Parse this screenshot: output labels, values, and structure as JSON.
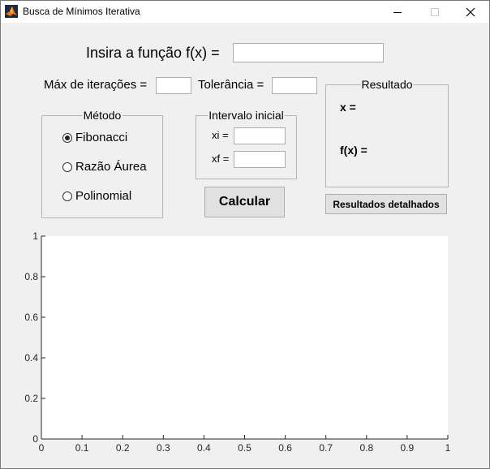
{
  "window": {
    "title": "Busca de Mínimos Iterativa"
  },
  "function_input": {
    "label": "Insira a função f(x) =",
    "value": ""
  },
  "max_iterations": {
    "label": "Máx de iterações =",
    "value": ""
  },
  "tolerance": {
    "label": "Tolerância =",
    "value": ""
  },
  "method_group": {
    "title": "Método",
    "options": [
      {
        "label": "Fibonacci",
        "selected": true
      },
      {
        "label": "Razão Áurea",
        "selected": false
      },
      {
        "label": "Polinomial",
        "selected": false
      }
    ]
  },
  "interval_group": {
    "title": "Intervalo inicial",
    "xi_label": "xi =",
    "xi_value": "",
    "xf_label": "xf =",
    "xf_value": ""
  },
  "result_group": {
    "title": "Resultado",
    "x_label": "x =",
    "fx_label": "f(x) ="
  },
  "buttons": {
    "calculate": "Calcular",
    "detailed_results": "Resultados detalhados"
  },
  "plot": {
    "x_ticks": [
      "0",
      "0.1",
      "0.2",
      "0.3",
      "0.4",
      "0.5",
      "0.6",
      "0.7",
      "0.8",
      "0.9",
      "1"
    ],
    "y_ticks": [
      "0",
      "0.2",
      "0.4",
      "0.6",
      "0.8",
      "1"
    ]
  }
}
